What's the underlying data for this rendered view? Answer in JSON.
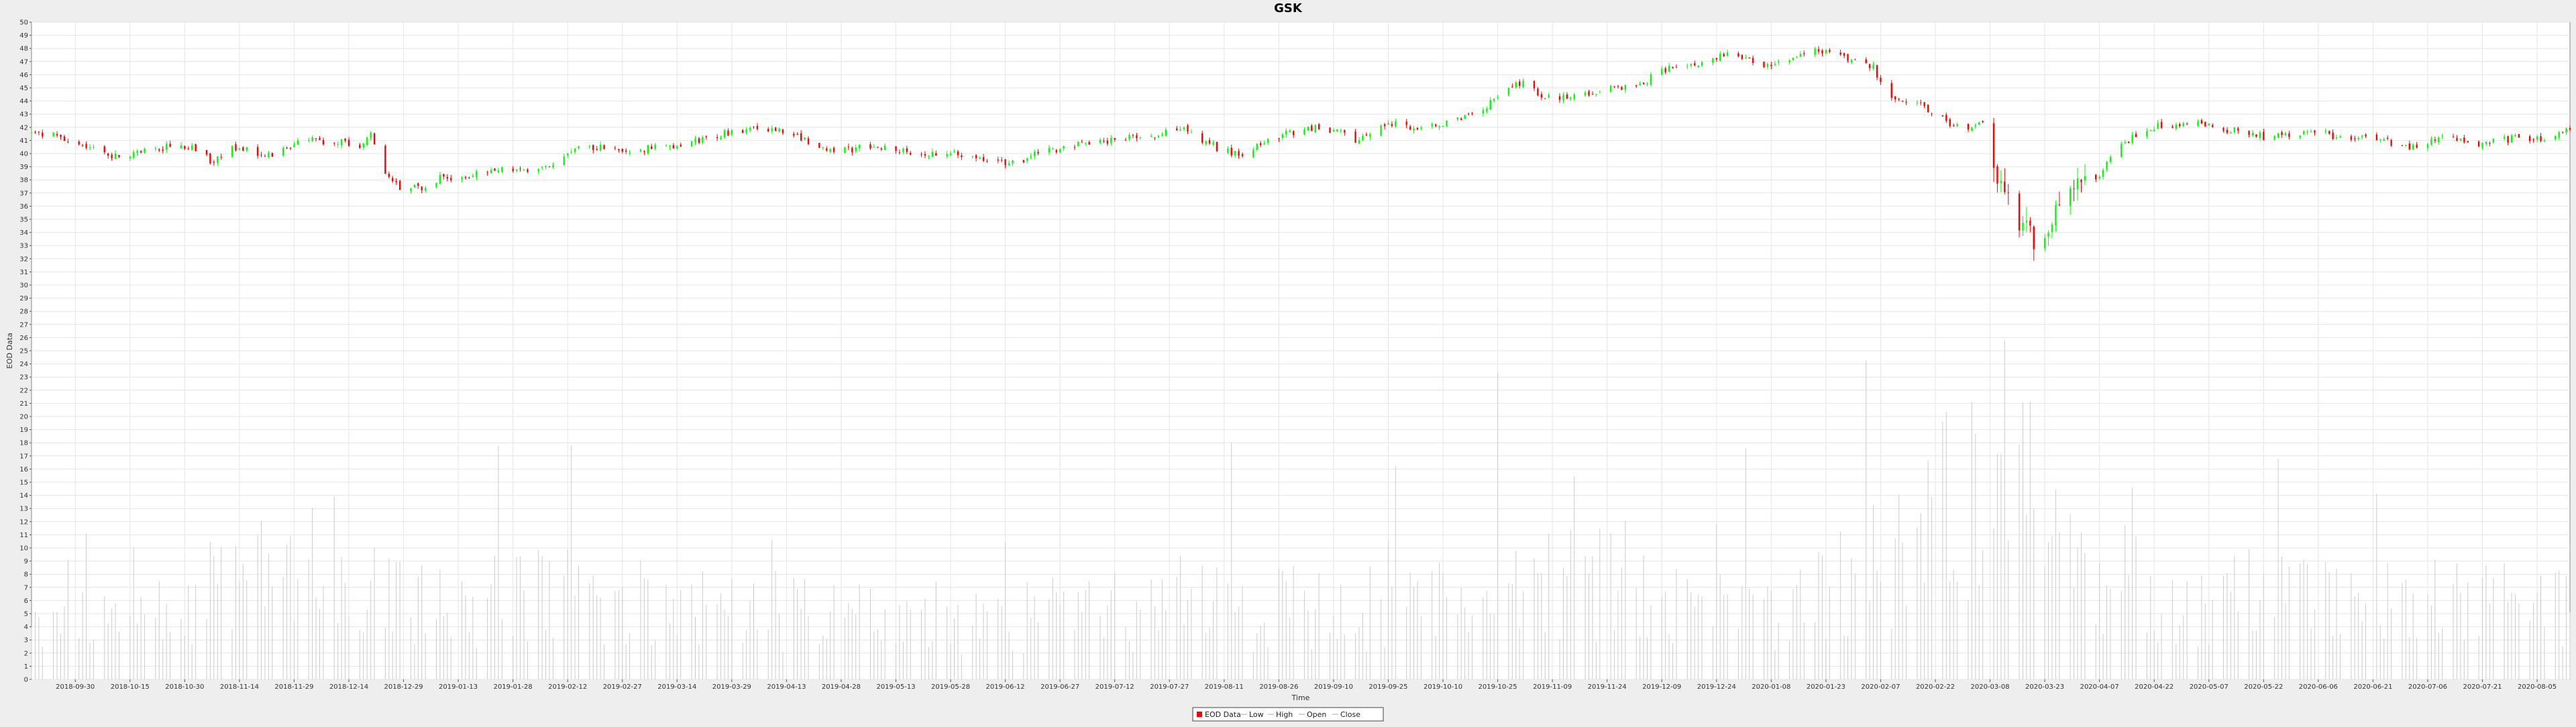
{
  "chart_data": {
    "type": "candlestick",
    "title": "GSK",
    "xlabel": "Time",
    "ylabel": "EOD Data",
    "ylim": [
      0,
      50
    ],
    "y_ticks": [
      0,
      1,
      2,
      3,
      4,
      5,
      6,
      7,
      8,
      9,
      10,
      11,
      12,
      13,
      14,
      15,
      16,
      17,
      18,
      19,
      20,
      21,
      22,
      23,
      24,
      25,
      26,
      27,
      28,
      29,
      30,
      31,
      32,
      33,
      34,
      35,
      36,
      37,
      38,
      39,
      40,
      41,
      42,
      43,
      44,
      45,
      46,
      47,
      48,
      49,
      50
    ],
    "x_range": [
      "2018-09-18",
      "2020-08-14"
    ],
    "x_ticks": [
      "2018-09-30",
      "2018-10-15",
      "2018-10-30",
      "2018-11-14",
      "2018-11-29",
      "2018-12-14",
      "2018-12-29",
      "2019-01-13",
      "2019-01-28",
      "2019-02-12",
      "2019-02-27",
      "2019-03-14",
      "2019-03-29",
      "2019-04-13",
      "2019-04-28",
      "2019-05-13",
      "2019-05-28",
      "2019-06-12",
      "2019-06-27",
      "2019-07-12",
      "2019-07-27",
      "2019-08-11",
      "2019-08-26",
      "2019-09-10",
      "2019-09-25",
      "2019-10-10",
      "2019-10-25",
      "2019-11-09",
      "2019-11-24",
      "2019-12-09",
      "2019-12-24",
      "2020-01-08",
      "2020-01-23",
      "2020-02-07",
      "2020-02-22",
      "2020-03-08",
      "2020-03-23",
      "2020-04-07",
      "2020-04-22",
      "2020-05-07",
      "2020-05-22",
      "2020-06-06",
      "2020-06-21",
      "2020-07-06",
      "2020-07-21",
      "2020-08-05"
    ],
    "grid": true,
    "legend_position": "bottom-center",
    "legend": [
      "EOD Data",
      "Low",
      "High",
      "Open",
      "Close"
    ],
    "colors": {
      "up": "#00ff00",
      "down": "#ff0000",
      "volume": "#cccccc",
      "grid": "#e6e6e6",
      "plot_bg": "#ffffff",
      "border": "#888888"
    },
    "price_anchors": [
      [
        "2018-09-18",
        41.5
      ],
      [
        "2018-09-25",
        41.4
      ],
      [
        "2018-10-02",
        40.6
      ],
      [
        "2018-10-10",
        39.9
      ],
      [
        "2018-10-17",
        40.0
      ],
      [
        "2018-10-26",
        40.6
      ],
      [
        "2018-11-02",
        40.3
      ],
      [
        "2018-11-07",
        39.3
      ],
      [
        "2018-11-12",
        40.5
      ],
      [
        "2018-11-19",
        40.0
      ],
      [
        "2018-11-24",
        39.9
      ],
      [
        "2018-11-30",
        40.9
      ],
      [
        "2018-12-06",
        41.0
      ],
      [
        "2018-12-12",
        40.9
      ],
      [
        "2018-12-17",
        40.6
      ],
      [
        "2018-12-20",
        41.6
      ],
      [
        "2018-12-24",
        38.4
      ],
      [
        "2018-12-28",
        37.3
      ],
      [
        "2019-01-01",
        37.4
      ],
      [
        "2019-01-04",
        37.5
      ],
      [
        "2019-01-08",
        38.2
      ],
      [
        "2019-01-15",
        38.2
      ],
      [
        "2019-01-24",
        38.9
      ],
      [
        "2019-01-31",
        38.8
      ],
      [
        "2019-02-07",
        39.0
      ],
      [
        "2019-02-14",
        40.4
      ],
      [
        "2019-02-21",
        40.6
      ],
      [
        "2019-02-28",
        40.3
      ],
      [
        "2019-03-14",
        40.5
      ],
      [
        "2019-03-25",
        41.4
      ],
      [
        "2019-04-03",
        41.9
      ],
      [
        "2019-04-12",
        41.7
      ],
      [
        "2019-04-25",
        40.1
      ],
      [
        "2019-05-07",
        40.6
      ],
      [
        "2019-05-17",
        40.0
      ],
      [
        "2019-05-29",
        40.0
      ],
      [
        "2019-06-07",
        39.6
      ],
      [
        "2019-06-14",
        39.3
      ],
      [
        "2019-06-21",
        40.0
      ],
      [
        "2019-07-01",
        40.7
      ],
      [
        "2019-07-11",
        41.0
      ],
      [
        "2019-07-21",
        41.3
      ],
      [
        "2019-07-31",
        41.8
      ],
      [
        "2019-08-09",
        40.4
      ],
      [
        "2019-08-16",
        39.9
      ],
      [
        "2019-08-26",
        41.4
      ],
      [
        "2019-09-06",
        42.1
      ],
      [
        "2019-09-16",
        41.1
      ],
      [
        "2019-09-24",
        42.3
      ],
      [
        "2019-10-02",
        42.0
      ],
      [
        "2019-10-15",
        42.6
      ],
      [
        "2019-10-24",
        44.0
      ],
      [
        "2019-10-31",
        45.4
      ],
      [
        "2019-11-06",
        44.5
      ],
      [
        "2019-11-14",
        44.2
      ],
      [
        "2019-11-24",
        44.9
      ],
      [
        "2019-12-03",
        45.3
      ],
      [
        "2019-12-13",
        46.8
      ],
      [
        "2019-12-20",
        46.7
      ],
      [
        "2019-12-27",
        47.6
      ],
      [
        "2020-01-06",
        46.8
      ],
      [
        "2020-01-14",
        47.1
      ],
      [
        "2020-01-21",
        47.9
      ],
      [
        "2020-01-28",
        47.4
      ],
      [
        "2020-02-01",
        46.9
      ],
      [
        "2020-02-05",
        46.5
      ],
      [
        "2020-02-10",
        44.3
      ],
      [
        "2020-02-17",
        44.0
      ],
      [
        "2020-02-24",
        42.6
      ],
      [
        "2020-03-02",
        41.6
      ],
      [
        "2020-03-06",
        42.3
      ],
      [
        "2020-03-10",
        38.0
      ],
      [
        "2020-03-13",
        36.5
      ],
      [
        "2020-03-17",
        34.5
      ],
      [
        "2020-03-21",
        33.2
      ],
      [
        "2020-03-25",
        35.2
      ],
      [
        "2020-03-30",
        37.0
      ],
      [
        "2020-04-06",
        38.0
      ],
      [
        "2020-04-13",
        40.8
      ],
      [
        "2020-04-22",
        42.0
      ],
      [
        "2020-05-01",
        42.3
      ],
      [
        "2020-05-11",
        41.9
      ],
      [
        "2020-05-22",
        41.3
      ],
      [
        "2020-06-03",
        41.7
      ],
      [
        "2020-06-12",
        41.3
      ],
      [
        "2020-06-21",
        41.1
      ],
      [
        "2020-07-01",
        40.5
      ],
      [
        "2020-07-10",
        41.4
      ],
      [
        "2020-07-20",
        40.6
      ],
      [
        "2020-07-30",
        41.2
      ],
      [
        "2020-08-07",
        41.0
      ],
      [
        "2020-08-14",
        42.0
      ]
    ],
    "volume_profile": [
      [
        "2018-09-18",
        5
      ],
      [
        "2018-11-01",
        6
      ],
      [
        "2018-12-10",
        11
      ],
      [
        "2018-12-31",
        6
      ],
      [
        "2019-02-01",
        7
      ],
      [
        "2019-06-01",
        5
      ],
      [
        "2019-08-01",
        6
      ],
      [
        "2019-10-01",
        6
      ],
      [
        "2019-11-15",
        8
      ],
      [
        "2020-01-15",
        6
      ],
      [
        "2020-02-10",
        11
      ],
      [
        "2020-03-12",
        18
      ],
      [
        "2020-04-01",
        9
      ],
      [
        "2020-05-01",
        7
      ],
      [
        "2020-08-14",
        6
      ]
    ]
  },
  "note_removed": true
}
